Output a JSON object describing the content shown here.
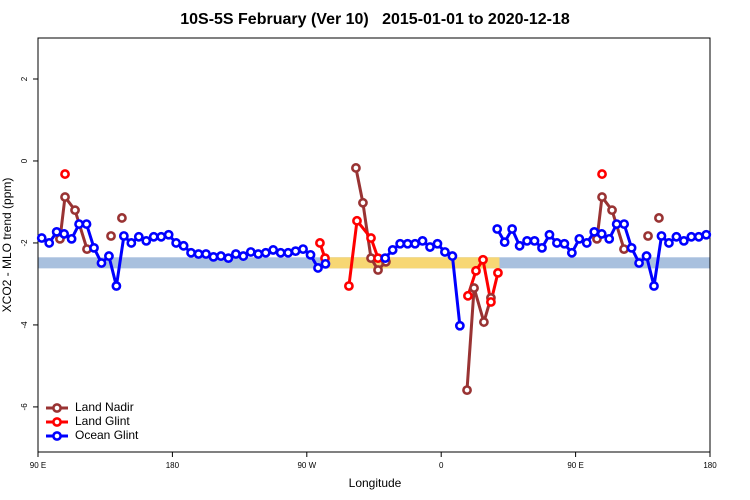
{
  "chart_data": {
    "type": "line",
    "title": "10S-5S February (Ver 10)   2015-01-01 to 2020-12-18",
    "xlabel": "Longitude",
    "ylabel": "XCO2 - MLO trend (ppm)",
    "xlim": [
      90,
      540
    ],
    "ylim": [
      -7.1,
      3
    ],
    "xticks": [
      {
        "value": 90,
        "label": "90 E"
      },
      180,
      {
        "value": 270,
        "label": "90 W"
      },
      {
        "value": 360,
        "label": "0"
      },
      {
        "value": 450,
        "label": "90 E"
      },
      {
        "value": 540,
        "label": "180"
      }
    ],
    "yticks": [
      -6,
      -4,
      -2,
      0,
      2
    ],
    "grid": false,
    "legend": "bottom-left",
    "band": {
      "lower": -2.62,
      "upper": -2.35,
      "color": "#a8c0de"
    },
    "highlight": {
      "x": [
        282,
        399
      ],
      "color": "#f7d774"
    },
    "series": [
      {
        "name": "Land Nadir",
        "color": "#993333",
        "x": [
          104.7,
          108.1,
          114.8,
          122.8,
          null,
          138.9,
          null,
          146.2,
          null,
          302.9,
          307.6,
          313,
          317.7,
          323,
          null,
          377.3,
          382,
          388.6,
          393.3,
          null,
          464.3,
          467.7,
          474.4,
          482.4,
          null,
          498.5,
          null,
          505.8
        ],
        "values": [
          -1.9,
          -0.88,
          -1.2,
          -2.15,
          null,
          -1.83,
          null,
          -1.39,
          null,
          -0.17,
          -1.02,
          -2.37,
          -2.66,
          -2.46,
          null,
          -5.59,
          -3.1,
          -3.93,
          -3.34,
          null,
          -1.9,
          -0.88,
          -1.2,
          -2.15,
          null,
          -1.83,
          null,
          -1.39
        ]
      },
      {
        "name": "Land Glint",
        "color": "#ff0000",
        "x": [
          108.1,
          null,
          278.8,
          282.2,
          null,
          298.2,
          303.6,
          313,
          317.7,
          null,
          377.9,
          383.3,
          388,
          393.3,
          398,
          null,
          467.7
        ],
        "values": [
          -0.32,
          null,
          -2.0,
          -2.37,
          null,
          -3.05,
          -1.46,
          -1.88,
          -2.37,
          null,
          -3.29,
          -2.68,
          -2.41,
          -3.44,
          -2.73,
          null,
          -0.32
        ]
      },
      {
        "name": "Ocean Glint",
        "color": "#0000ff",
        "x": [
          92.5,
          97.5,
          102.5,
          107.5,
          112.5,
          117.5,
          122.5,
          127.5,
          132.5,
          137.5,
          142.5,
          147.5,
          152.5,
          157.5,
          162.5,
          167.5,
          172.5,
          177.5,
          182.5,
          187.5,
          192.5,
          197.5,
          202.5,
          207.5,
          212.5,
          217.5,
          222.5,
          227.5,
          232.5,
          237.5,
          242.5,
          247.5,
          252.5,
          257.5,
          262.5,
          267.5,
          272.5,
          277.5,
          282.5,
          null,
          322.5,
          327.5,
          332.5,
          337.5,
          342.5,
          347.5,
          352.5,
          357.5,
          362.5,
          367.5,
          372.5,
          null,
          397.5,
          402.5,
          407.5,
          412.5,
          417.5,
          422.5,
          427.5,
          432.5,
          437.5,
          442.5,
          447.5,
          452.5,
          457.5,
          462.5,
          467.5,
          472.5,
          477.5,
          482.5,
          487.5,
          492.5,
          497.5,
          502.5,
          507.5,
          512.5,
          517.5,
          522.5,
          527.5,
          532.5,
          537.5
        ],
        "values": [
          -1.88,
          -2.0,
          -1.73,
          -1.78,
          -1.9,
          -1.54,
          -1.54,
          -2.12,
          -2.49,
          -2.32,
          -3.05,
          -1.83,
          -2.0,
          -1.85,
          -1.95,
          -1.85,
          -1.85,
          -1.8,
          -2.0,
          -2.07,
          -2.24,
          -2.27,
          -2.27,
          -2.34,
          -2.32,
          -2.37,
          -2.27,
          -2.32,
          -2.22,
          -2.27,
          -2.24,
          -2.17,
          -2.24,
          -2.24,
          -2.2,
          -2.15,
          -2.29,
          -2.61,
          -2.51,
          null,
          -2.37,
          -2.17,
          -2.02,
          -2.02,
          -2.02,
          -1.95,
          -2.1,
          -2.02,
          -2.22,
          -2.32,
          -4.02,
          null,
          -1.66,
          -1.98,
          -1.66,
          -2.07,
          -1.95,
          -1.95,
          -2.12,
          -1.8,
          -2.0,
          -2.02,
          -2.24,
          -1.9,
          -2.0,
          -1.73,
          -1.78,
          -1.9,
          -1.54,
          -1.54,
          -2.12,
          -2.49,
          -2.32,
          -3.05,
          -1.83,
          -2.0,
          -1.85,
          -1.95,
          -1.85,
          -1.85,
          -1.8
        ]
      }
    ]
  }
}
